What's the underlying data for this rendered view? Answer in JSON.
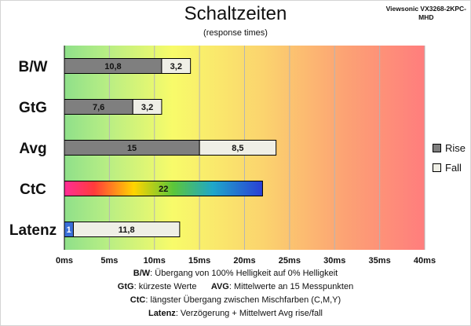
{
  "title": "Schaltzeiten",
  "subtitle": "(response times)",
  "model_line1": "Viewsonic VX3268-2KPC-",
  "model_line2": "MHD",
  "legend": [
    {
      "label": "Rise",
      "color": "#7f7f7f"
    },
    {
      "label": "Fall",
      "color": "#efefe6"
    }
  ],
  "notes": [
    {
      "key": "B/W",
      "text": ":  Übergang von 100% Helligkeit auf 0% Helligkeit"
    },
    {
      "key": "GtG",
      "text": ": kürzeste  Werte",
      "key2": "AVG",
      "text2": ": Mittelwerte  an 15 Messpunkten"
    },
    {
      "key": "CtC",
      "text": ": längster Übergang  zwischen Mischfarben (C,M,Y)"
    },
    {
      "key": "Latenz",
      "text": ": Verzögerung  + Mittelwert Avg rise/fall"
    }
  ],
  "chart_data": {
    "type": "bar",
    "orientation": "horizontal",
    "stacked": true,
    "categories": [
      "B/W",
      "GtG",
      "Avg",
      "CtC",
      "Latenz"
    ],
    "series": [
      {
        "name": "Rise",
        "values": [
          10.8,
          7.6,
          15,
          null,
          1
        ],
        "labels": [
          "10,8",
          "7,6",
          "15",
          "",
          "1"
        ]
      },
      {
        "name": "Fall",
        "values": [
          3.2,
          3.2,
          8.5,
          null,
          11.8
        ],
        "labels": [
          "3,2",
          "3,2",
          "8,5",
          "",
          "11,8"
        ]
      },
      {
        "name": "CtC",
        "values": [
          null,
          null,
          null,
          22,
          null
        ],
        "labels": [
          "",
          "",
          "",
          "22",
          ""
        ]
      }
    ],
    "xticks": [
      "0ms",
      "5ms",
      "10ms",
      "15ms",
      "20ms",
      "25ms",
      "30ms",
      "35ms",
      "40ms"
    ],
    "xlim": [
      0,
      40
    ],
    "grid": true,
    "legend_position": "right",
    "colors": {
      "rise": "#7f7f7f",
      "fall": "#efefe6",
      "latency": "#3a6fd8",
      "background_start": "#8fe08a",
      "background_mid": "#f8fb6a",
      "background_end": "#ff7d7d"
    }
  }
}
